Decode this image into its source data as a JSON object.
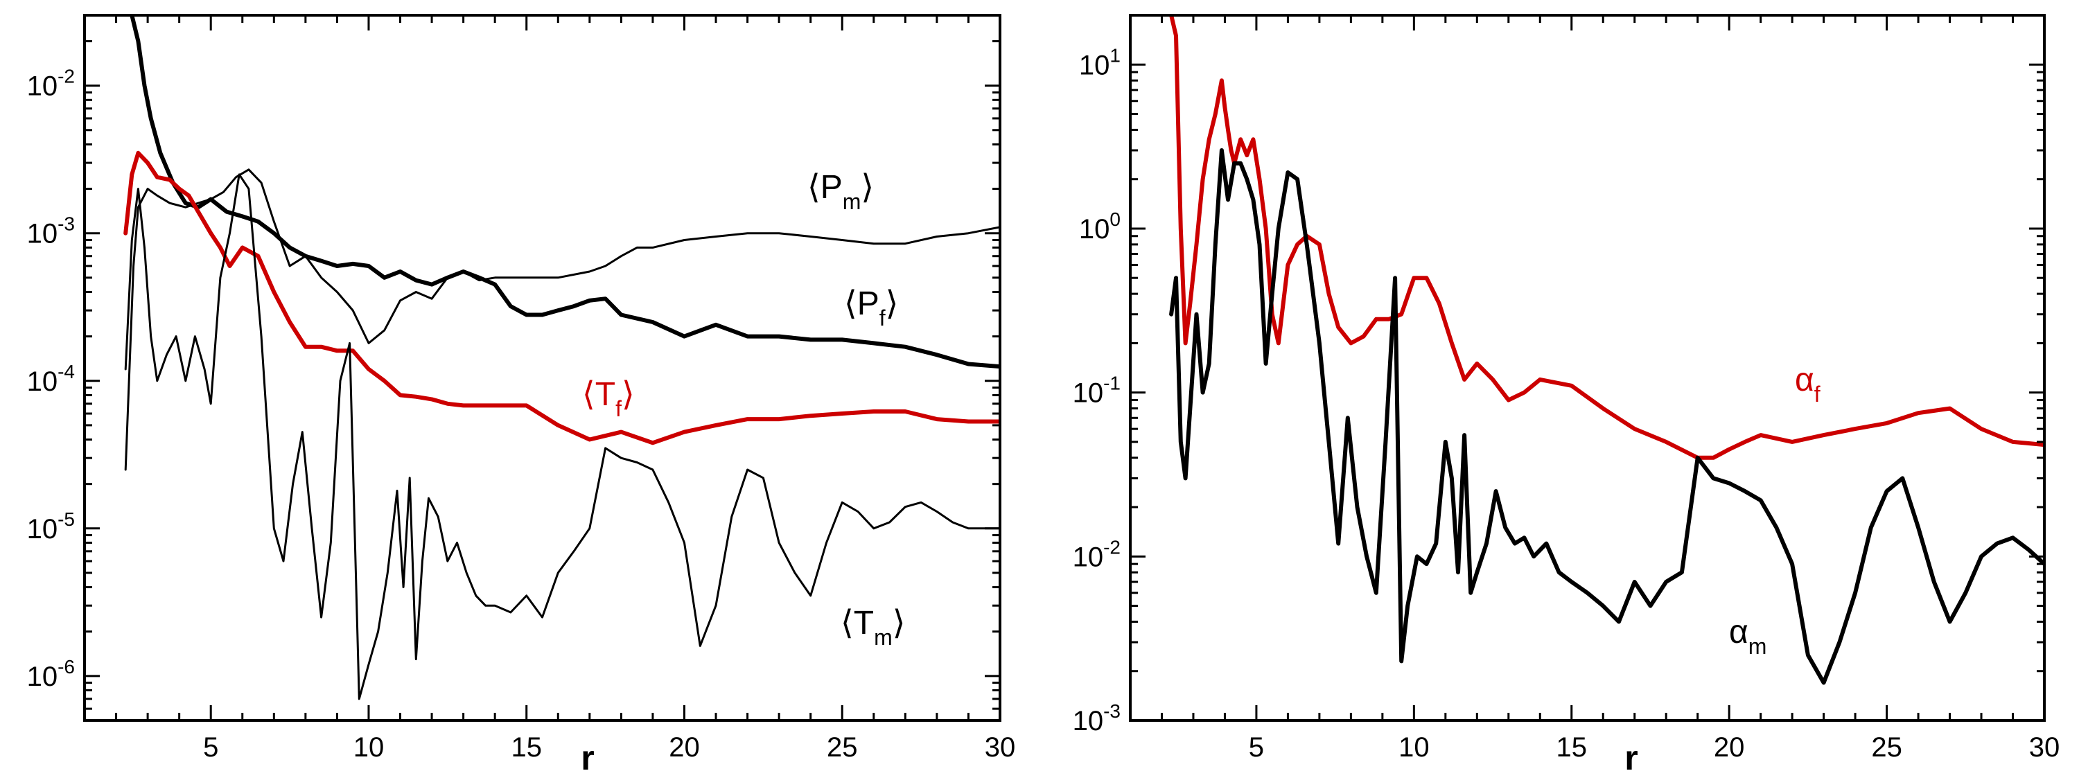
{
  "chart_data": [
    {
      "type": "line",
      "panel": "left",
      "title": "",
      "xlabel": "r",
      "ylabel": "",
      "xscale": "linear",
      "yscale": "log",
      "xlim": [
        1,
        30
      ],
      "ylim": [
        5e-07,
        0.03
      ],
      "xticks": [
        5,
        10,
        15,
        20,
        25,
        30
      ],
      "yticks": [
        {
          "value": 1e-06,
          "base": "10",
          "exp": "-6"
        },
        {
          "value": 1e-05,
          "base": "10",
          "exp": "-5"
        },
        {
          "value": 0.0001,
          "base": "10",
          "exp": "-4"
        },
        {
          "value": 0.001,
          "base": "10",
          "exp": "-3"
        },
        {
          "value": 0.01,
          "base": "10",
          "exp": "-2"
        }
      ],
      "series": [
        {
          "name": "⟨P_m⟩",
          "label": {
            "open": "⟨",
            "main": "P",
            "sub": "m",
            "close": "⟩"
          },
          "color": "#000000",
          "width": 3,
          "x": [
            2.3,
            2.55,
            2.7,
            3.0,
            3.3,
            3.7,
            4.2,
            4.6,
            5.0,
            5.4,
            5.8,
            6.2,
            6.6,
            7.0,
            7.5,
            8.0,
            8.5,
            9.0,
            9.5,
            10.0,
            10.5,
            11.0,
            11.5,
            12.0,
            12.5,
            13.0,
            13.5,
            14.0,
            15.0,
            16.0,
            17.0,
            17.5,
            18.0,
            18.5,
            19.0,
            20.0,
            21.0,
            22.0,
            23.0,
            24.0,
            25.0,
            26.0,
            27.0,
            28.0,
            29.0,
            30.0
          ],
          "y": [
            2.5e-05,
            0.0006,
            0.0015,
            0.002,
            0.0018,
            0.0016,
            0.0015,
            0.0016,
            0.0017,
            0.0019,
            0.0024,
            0.0027,
            0.0022,
            0.0012,
            0.0006,
            0.0007,
            0.0005,
            0.0004,
            0.0003,
            0.00018,
            0.00022,
            0.00035,
            0.0004,
            0.00036,
            0.0005,
            0.00055,
            0.00048,
            0.0005,
            0.0005,
            0.0005,
            0.00055,
            0.0006,
            0.0007,
            0.0008,
            0.0008,
            0.0009,
            0.00095,
            0.001,
            0.001,
            0.00095,
            0.0009,
            0.00085,
            0.00085,
            0.00095,
            0.001,
            0.0011
          ]
        },
        {
          "name": "⟨P_f⟩",
          "label": {
            "open": "⟨",
            "main": "P",
            "sub": "f",
            "close": "⟩"
          },
          "color": "#000000",
          "width": 6,
          "x": [
            2.5,
            2.7,
            2.9,
            3.1,
            3.4,
            3.8,
            4.2,
            4.6,
            5.0,
            5.5,
            6.0,
            6.5,
            7.0,
            7.5,
            8.0,
            8.5,
            9.0,
            9.5,
            10.0,
            10.5,
            11.0,
            11.5,
            12.0,
            12.5,
            13.0,
            13.5,
            14.0,
            14.5,
            15.0,
            15.5,
            16.0,
            16.5,
            17.0,
            17.5,
            18.0,
            19.0,
            20.0,
            21.0,
            22.0,
            23.0,
            24.0,
            25.0,
            26.0,
            27.0,
            28.0,
            29.0,
            30.0
          ],
          "y": [
            0.03,
            0.02,
            0.01,
            0.006,
            0.0035,
            0.0022,
            0.0016,
            0.0015,
            0.0017,
            0.0014,
            0.0013,
            0.0012,
            0.001,
            0.0008,
            0.0007,
            0.00065,
            0.0006,
            0.00062,
            0.0006,
            0.0005,
            0.00055,
            0.00048,
            0.00045,
            0.0005,
            0.00055,
            0.0005,
            0.00045,
            0.00032,
            0.00028,
            0.00028,
            0.0003,
            0.00032,
            0.00035,
            0.00036,
            0.00028,
            0.00025,
            0.0002,
            0.00024,
            0.0002,
            0.0002,
            0.00019,
            0.00019,
            0.00018,
            0.00017,
            0.00015,
            0.00013,
            0.000125
          ]
        },
        {
          "name": "⟨T_f⟩",
          "label": {
            "open": "⟨",
            "main": "T",
            "sub": "f",
            "close": "⟩"
          },
          "color": "#cc0000",
          "width": 6,
          "x": [
            2.3,
            2.5,
            2.7,
            3.0,
            3.3,
            3.7,
            4.0,
            4.3,
            4.6,
            5.0,
            5.3,
            5.6,
            6.0,
            6.5,
            7.0,
            7.5,
            8.0,
            8.5,
            9.0,
            9.5,
            10.0,
            10.5,
            11.0,
            11.5,
            12.0,
            12.5,
            13.0,
            14.0,
            15.0,
            16.0,
            17.0,
            18.0,
            19.0,
            20.0,
            21.0,
            22.0,
            23.0,
            24.0,
            25.0,
            26.0,
            27.0,
            28.0,
            29.0,
            30.0
          ],
          "y": [
            0.001,
            0.0025,
            0.0035,
            0.003,
            0.0024,
            0.0023,
            0.002,
            0.0018,
            0.0014,
            0.001,
            0.0008,
            0.0006,
            0.0008,
            0.0007,
            0.0004,
            0.00025,
            0.00017,
            0.00017,
            0.00016,
            0.00016,
            0.00012,
            0.0001,
            8e-05,
            7.8e-05,
            7.5e-05,
            7e-05,
            6.8e-05,
            6.8e-05,
            6.8e-05,
            5e-05,
            4e-05,
            4.5e-05,
            3.8e-05,
            4.5e-05,
            5e-05,
            5.5e-05,
            5.5e-05,
            5.8e-05,
            6e-05,
            6.2e-05,
            6.2e-05,
            5.5e-05,
            5.3e-05,
            5.3e-05
          ]
        },
        {
          "name": "⟨T_m⟩",
          "label": {
            "open": "⟨",
            "main": "T",
            "sub": "m",
            "close": "⟩"
          },
          "color": "#000000",
          "width": 3,
          "x": [
            2.3,
            2.5,
            2.7,
            2.9,
            3.1,
            3.3,
            3.6,
            3.9,
            4.2,
            4.5,
            4.8,
            5.0,
            5.3,
            5.6,
            5.9,
            6.2,
            6.6,
            7.0,
            7.3,
            7.6,
            7.9,
            8.2,
            8.5,
            8.8,
            9.1,
            9.4,
            9.7,
            10.0,
            10.3,
            10.6,
            10.9,
            11.1,
            11.3,
            11.5,
            11.7,
            11.9,
            12.2,
            12.5,
            12.8,
            13.1,
            13.4,
            13.7,
            14.0,
            14.5,
            15.0,
            15.5,
            16.0,
            16.5,
            17.0,
            17.5,
            18.0,
            18.5,
            19.0,
            19.5,
            20.0,
            20.5,
            21.0,
            21.5,
            22.0,
            22.5,
            23.0,
            23.5,
            24.0,
            24.5,
            25.0,
            25.5,
            26.0,
            26.5,
            27.0,
            27.5,
            28.0,
            28.5,
            29.0,
            29.5,
            30.0
          ],
          "y": [
            0.00012,
            0.0009,
            0.002,
            0.0008,
            0.0002,
            0.0001,
            0.00015,
            0.0002,
            0.0001,
            0.0002,
            0.00012,
            7e-05,
            0.0005,
            0.001,
            0.0025,
            0.002,
            0.0002,
            1e-05,
            6e-06,
            2e-05,
            4.5e-05,
            1e-05,
            2.5e-06,
            8e-06,
            0.0001,
            0.00018,
            7e-07,
            1.2e-06,
            2e-06,
            5e-06,
            1.8e-05,
            4e-06,
            2.2e-05,
            1.3e-06,
            6e-06,
            1.6e-05,
            1.2e-05,
            6e-06,
            8e-06,
            5e-06,
            3.5e-06,
            3e-06,
            3e-06,
            2.7e-06,
            3.5e-06,
            2.5e-06,
            5e-06,
            7e-06,
            1e-05,
            3.5e-05,
            3e-05,
            2.8e-05,
            2.5e-05,
            1.5e-05,
            8e-06,
            1.6e-06,
            3e-06,
            1.2e-05,
            2.5e-05,
            2.2e-05,
            8e-06,
            5e-06,
            3.5e-06,
            8e-06,
            1.5e-05,
            1.3e-05,
            1e-05,
            1.1e-05,
            1.4e-05,
            1.5e-05,
            1.3e-05,
            1.1e-05,
            1e-05,
            1e-05,
            1e-05
          ]
        }
      ]
    },
    {
      "type": "line",
      "panel": "right",
      "title": "",
      "xlabel": "r",
      "ylabel": "",
      "xscale": "linear",
      "yscale": "log",
      "xlim": [
        1,
        30
      ],
      "ylim": [
        0.001,
        20
      ],
      "xticks": [
        5,
        10,
        15,
        20,
        25,
        30
      ],
      "yticks": [
        {
          "value": 0.001,
          "base": "10",
          "exp": "-3"
        },
        {
          "value": 0.01,
          "base": "10",
          "exp": "-2"
        },
        {
          "value": 0.1,
          "base": "10",
          "exp": "-1"
        },
        {
          "value": 1,
          "base": "10",
          "exp": "0"
        },
        {
          "value": 10,
          "base": "10",
          "exp": "1"
        }
      ],
      "series": [
        {
          "name": "α_f",
          "label": {
            "main": "α",
            "sub": "f"
          },
          "color": "#cc0000",
          "width": 6,
          "x": [
            2.3,
            2.45,
            2.6,
            2.75,
            2.9,
            3.1,
            3.3,
            3.5,
            3.7,
            3.9,
            4.0,
            4.1,
            4.2,
            4.3,
            4.5,
            4.7,
            4.9,
            5.1,
            5.3,
            5.5,
            5.7,
            6.0,
            6.3,
            6.6,
            7.0,
            7.3,
            7.6,
            8.0,
            8.4,
            8.8,
            9.2,
            9.6,
            10.0,
            10.4,
            10.8,
            11.2,
            11.6,
            12.0,
            12.5,
            13.0,
            13.5,
            14.0,
            15.0,
            16.0,
            17.0,
            18.0,
            19.0,
            19.5,
            20.0,
            20.5,
            21.0,
            22.0,
            23.0,
            24.0,
            25.0,
            26.0,
            27.0,
            28.0,
            29.0,
            30.0
          ],
          "y": [
            20,
            15,
            1.0,
            0.2,
            0.35,
            0.8,
            2.0,
            3.5,
            5.0,
            8.0,
            5.5,
            4.0,
            3.0,
            2.5,
            3.5,
            2.8,
            3.5,
            2.0,
            1.0,
            0.3,
            0.2,
            0.6,
            0.8,
            0.9,
            0.8,
            0.4,
            0.25,
            0.2,
            0.22,
            0.28,
            0.28,
            0.3,
            0.5,
            0.5,
            0.35,
            0.2,
            0.12,
            0.15,
            0.12,
            0.09,
            0.1,
            0.12,
            0.11,
            0.08,
            0.06,
            0.05,
            0.04,
            0.04,
            0.045,
            0.05,
            0.055,
            0.05,
            0.055,
            0.06,
            0.065,
            0.075,
            0.08,
            0.06,
            0.05,
            0.048
          ]
        },
        {
          "name": "α_m",
          "label": {
            "main": "α",
            "sub": "m"
          },
          "color": "#000000",
          "width": 6,
          "x": [
            2.3,
            2.45,
            2.6,
            2.75,
            2.9,
            3.1,
            3.3,
            3.5,
            3.7,
            3.9,
            4.1,
            4.3,
            4.5,
            4.7,
            4.9,
            5.1,
            5.3,
            5.5,
            5.7,
            6.0,
            6.3,
            6.6,
            7.0,
            7.3,
            7.6,
            7.9,
            8.2,
            8.5,
            8.8,
            9.1,
            9.4,
            9.6,
            9.8,
            10.1,
            10.4,
            10.7,
            11.0,
            11.2,
            11.4,
            11.6,
            11.8,
            12.0,
            12.3,
            12.6,
            12.9,
            13.2,
            13.5,
            13.8,
            14.2,
            14.6,
            15.0,
            15.5,
            16.0,
            16.5,
            17.0,
            17.5,
            18.0,
            18.5,
            19.0,
            19.5,
            20.0,
            20.5,
            21.0,
            21.5,
            22.0,
            22.5,
            23.0,
            23.5,
            24.0,
            24.5,
            25.0,
            25.5,
            26.0,
            26.5,
            27.0,
            27.5,
            28.0,
            28.5,
            29.0,
            29.5,
            30.0
          ],
          "y": [
            0.3,
            0.5,
            0.05,
            0.03,
            0.08,
            0.3,
            0.1,
            0.15,
            0.8,
            3.0,
            1.5,
            2.5,
            2.5,
            2.0,
            1.5,
            0.8,
            0.15,
            0.4,
            1.0,
            2.2,
            2.0,
            0.8,
            0.2,
            0.05,
            0.012,
            0.07,
            0.02,
            0.01,
            0.006,
            0.05,
            0.5,
            0.0023,
            0.005,
            0.01,
            0.009,
            0.012,
            0.05,
            0.03,
            0.008,
            0.055,
            0.006,
            0.008,
            0.012,
            0.025,
            0.015,
            0.012,
            0.013,
            0.01,
            0.012,
            0.008,
            0.007,
            0.006,
            0.005,
            0.004,
            0.007,
            0.005,
            0.007,
            0.008,
            0.04,
            0.03,
            0.028,
            0.025,
            0.022,
            0.015,
            0.009,
            0.0025,
            0.0017,
            0.003,
            0.006,
            0.015,
            0.025,
            0.03,
            0.015,
            0.007,
            0.004,
            0.006,
            0.01,
            0.012,
            0.013,
            0.011,
            0.009
          ]
        }
      ]
    }
  ]
}
